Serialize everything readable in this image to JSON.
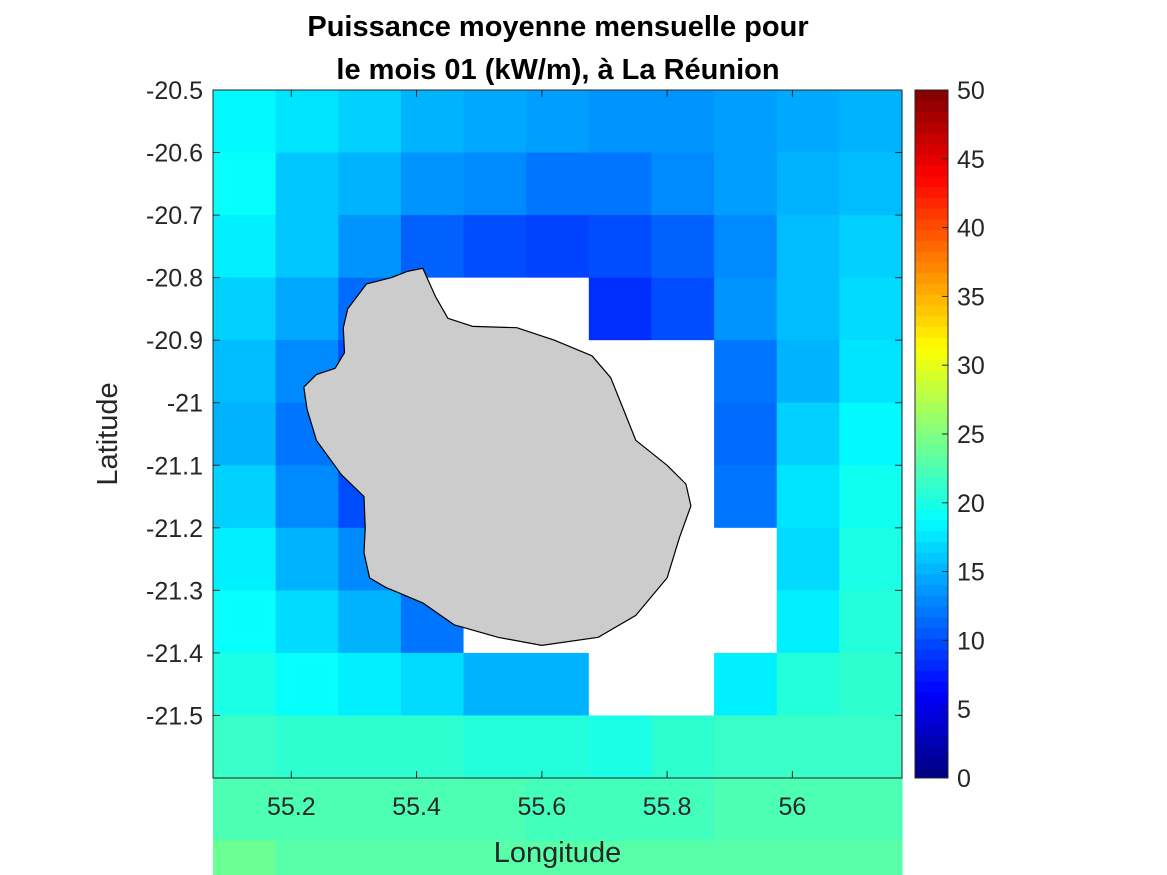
{
  "chart_data": {
    "type": "heatmap",
    "title_lines": [
      "Puissance moyenne mensuelle pour",
      "le mois 01 (kW/m), à La Réunion"
    ],
    "xlabel": "Longitude",
    "ylabel": "Latitude",
    "x_centers": [
      55.125,
      55.225,
      55.325,
      55.425,
      55.525,
      55.625,
      55.725,
      55.825,
      55.925,
      56.025,
      56.125
    ],
    "y_centers": [
      -20.55,
      -20.65,
      -20.75,
      -20.85,
      -20.95,
      -21.05,
      -21.15,
      -21.25,
      -21.35,
      -21.45,
      -21.55,
      -21.65,
      -21.75
    ],
    "cell_width": 0.1,
    "cell_height": 0.1,
    "x_ticks": [
      55.2,
      55.4,
      55.6,
      55.8,
      56
    ],
    "x_tick_labels": [
      "55.2",
      "55.4",
      "55.6",
      "55.8",
      "56"
    ],
    "y_ticks": [
      -20.5,
      -20.6,
      -20.7,
      -20.8,
      -20.9,
      -21,
      -21.1,
      -21.2,
      -21.3,
      -21.4,
      -21.5
    ],
    "y_tick_labels": [
      "-20.5",
      "-20.6",
      "-20.7",
      "-20.8",
      "-20.9",
      "-21",
      "-21.1",
      "-21.2",
      "-21.3",
      "-21.4",
      "-21.5"
    ],
    "xlim": [
      55.075,
      56.175
    ],
    "ylim": [
      -21.6,
      -20.5
    ],
    "colorbar": {
      "colormap": "jet",
      "clim": [
        0,
        50
      ],
      "ticks": [
        0,
        5,
        10,
        15,
        20,
        25,
        30,
        35,
        40,
        45,
        50
      ],
      "tick_labels": [
        "0",
        "5",
        "10",
        "15",
        "20",
        "25",
        "30",
        "35",
        "40",
        "45",
        "50"
      ]
    },
    "values": [
      [
        18.5,
        17.5,
        16.5,
        15,
        14.5,
        14,
        13.5,
        13.5,
        14,
        14.5,
        15
      ],
      [
        19,
        16,
        15,
        13.5,
        13,
        12,
        12,
        13,
        14,
        15,
        15.5
      ],
      [
        18,
        16,
        13.5,
        11,
        10,
        9.5,
        10,
        11,
        13,
        15.5,
        16.5
      ],
      [
        16.5,
        14.5,
        11.5,
        null,
        null,
        null,
        8.5,
        10,
        13.5,
        15.5,
        17
      ],
      [
        15.5,
        13,
        10,
        null,
        null,
        null,
        null,
        null,
        12,
        15,
        17.5
      ],
      [
        15,
        12,
        10,
        null,
        null,
        null,
        null,
        null,
        11.5,
        16.5,
        18.5
      ],
      [
        16.5,
        13,
        10,
        null,
        null,
        null,
        null,
        null,
        12,
        17.5,
        19.5
      ],
      [
        18,
        15,
        13,
        null,
        null,
        null,
        null,
        null,
        null,
        17,
        20
      ],
      [
        19,
        17,
        15,
        12,
        null,
        null,
        null,
        null,
        null,
        18,
        20.5
      ],
      [
        20,
        19,
        18,
        17,
        15,
        15,
        null,
        null,
        18,
        20.5,
        21
      ],
      [
        21.5,
        21,
        21,
        21,
        20.5,
        20.5,
        20,
        21,
        21.5,
        21.5,
        21.5
      ],
      [
        22.5,
        22.5,
        22.5,
        22.5,
        22.5,
        22,
        22,
        22,
        22.5,
        22.5,
        22.5
      ],
      [
        24,
        23,
        23,
        23,
        23,
        23,
        23,
        23,
        23,
        23,
        23
      ]
    ],
    "land_color": "#cccccc",
    "island_outline": [
      [
        55.45,
        -20.865
      ],
      [
        55.49,
        -20.878
      ],
      [
        55.56,
        -20.88
      ],
      [
        55.62,
        -20.9
      ],
      [
        55.68,
        -20.925
      ],
      [
        55.71,
        -20.96
      ],
      [
        55.73,
        -21.01
      ],
      [
        55.75,
        -21.06
      ],
      [
        55.8,
        -21.1
      ],
      [
        55.83,
        -21.13
      ],
      [
        55.838,
        -21.165
      ],
      [
        55.82,
        -21.215
      ],
      [
        55.8,
        -21.28
      ],
      [
        55.75,
        -21.34
      ],
      [
        55.69,
        -21.375
      ],
      [
        55.6,
        -21.388
      ],
      [
        55.53,
        -21.375
      ],
      [
        55.46,
        -21.355
      ],
      [
        55.41,
        -21.32
      ],
      [
        55.35,
        -21.295
      ],
      [
        55.325,
        -21.28
      ],
      [
        55.316,
        -21.24
      ],
      [
        55.318,
        -21.2
      ],
      [
        55.316,
        -21.15
      ],
      [
        55.28,
        -21.115
      ],
      [
        55.24,
        -21.06
      ],
      [
        55.225,
        -21.01
      ],
      [
        55.22,
        -20.975
      ],
      [
        55.24,
        -20.955
      ],
      [
        55.27,
        -20.945
      ],
      [
        55.285,
        -20.92
      ],
      [
        55.283,
        -20.88
      ],
      [
        55.29,
        -20.85
      ],
      [
        55.305,
        -20.83
      ],
      [
        55.32,
        -20.81
      ],
      [
        55.34,
        -20.805
      ],
      [
        55.36,
        -20.8
      ],
      [
        55.385,
        -20.79
      ],
      [
        55.41,
        -20.785
      ],
      [
        55.43,
        -20.83
      ]
    ]
  }
}
